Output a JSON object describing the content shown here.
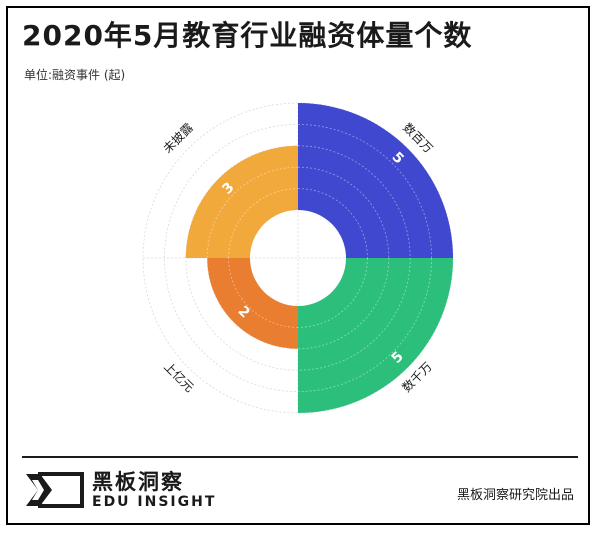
{
  "header": {
    "title": "2020年5月教育行业融资体量个数",
    "unit": "单位:融资事件 (起)"
  },
  "chart_data": {
    "type": "pie",
    "title": "2020年5月教育行业融资体量个数",
    "unit_label": "单位:融资事件 (起)",
    "categories": [
      "数百万",
      "数千万",
      "上亿元",
      "未披露"
    ],
    "values": [
      5,
      5,
      2,
      3
    ],
    "max_value": 5,
    "colors": [
      "#4048CF",
      "#2CBF7C",
      "#E97D30",
      "#F2A93B"
    ],
    "legend": "labels on outer ring"
  },
  "footer": {
    "brand_cn": "黑板洞察",
    "brand_en": "EDU INSIGHT",
    "credit": "黑板洞察研究院出品"
  }
}
